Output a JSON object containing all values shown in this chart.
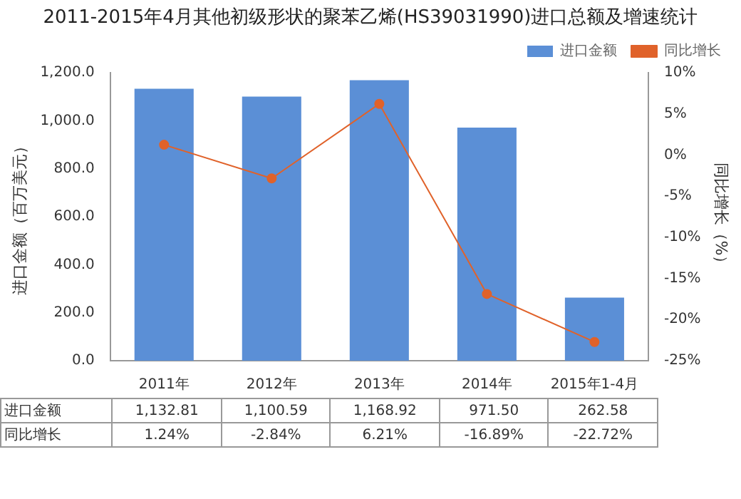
{
  "chart_data": {
    "type": "bar",
    "title": "2011-2015年4月其他初级形状的聚苯乙烯(HS39031990)进口总额及增速统计",
    "ylabel": "进口金额（百万美元）",
    "y2label": "同比增长（%）",
    "categories": [
      "2011年",
      "2012年",
      "2013年",
      "2014年",
      "2015年1-4月"
    ],
    "series": [
      {
        "name": "进口金额",
        "color": "#5b8fd6",
        "values": [
          1132.81,
          1100.59,
          1168.92,
          971.5,
          262.58
        ],
        "value_labels": [
          "1,132.81",
          "1,100.59",
          "1,168.92",
          "971.50",
          "262.58"
        ]
      },
      {
        "name": "同比增长",
        "type": "line",
        "axis": "y2",
        "color": "#e0622a",
        "marker": "circle",
        "values": [
          1.24,
          -2.84,
          6.21,
          -16.89,
          -22.72
        ],
        "value_labels": [
          "1.24%",
          "-2.84%",
          "6.21%",
          "-16.89%",
          "-22.72%"
        ]
      }
    ],
    "ylim": [
      0,
      1200
    ],
    "yticks": [
      {
        "value": 0,
        "label": "0.0"
      },
      {
        "value": 200,
        "label": "200.0"
      },
      {
        "value": 400,
        "label": "400.0"
      },
      {
        "value": 600,
        "label": "600.0"
      },
      {
        "value": 800,
        "label": "800.0"
      },
      {
        "value": 1000,
        "label": "1,000.0"
      },
      {
        "value": 1200,
        "label": "1,200.0"
      }
    ],
    "y2lim": [
      -25,
      10
    ],
    "y2ticks": [
      {
        "value": -25,
        "label": "-25%"
      },
      {
        "value": -20,
        "label": "-20%"
      },
      {
        "value": -15,
        "label": "-15%"
      },
      {
        "value": -10,
        "label": "-10%"
      },
      {
        "value": -5,
        "label": "-5%"
      },
      {
        "value": 0,
        "label": "0%"
      },
      {
        "value": 5,
        "label": "5%"
      },
      {
        "value": 10,
        "label": "10%"
      }
    ],
    "legend": "top right"
  }
}
